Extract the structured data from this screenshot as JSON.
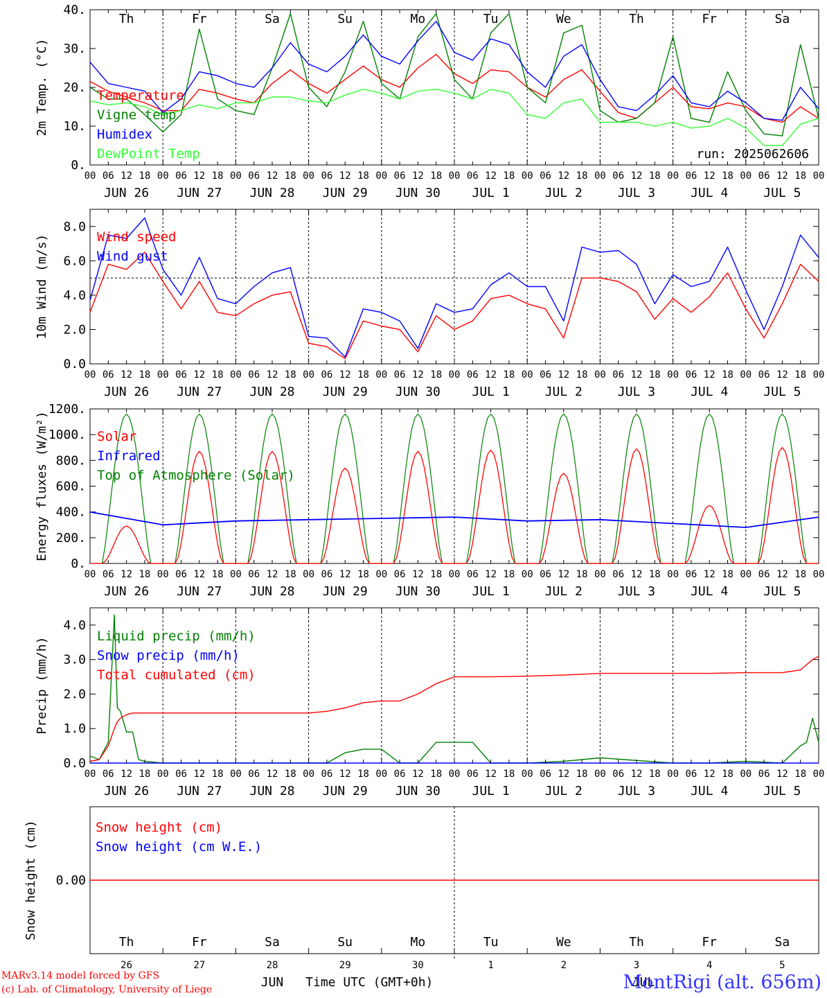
{
  "chart_data": [
    {
      "type": "line",
      "ylabel": "2m Temp. (°C)",
      "ylim": [
        0,
        40
      ],
      "yticks": [
        "0.",
        "10.",
        "20.",
        "30.",
        "40."
      ],
      "run": "run: 2025062606",
      "x_hours_range": [
        0,
        240
      ],
      "x": [
        0,
        6,
        12,
        18,
        24,
        30,
        36,
        42,
        48,
        54,
        60,
        66,
        72,
        78,
        84,
        90,
        96,
        102,
        108,
        114,
        120,
        126,
        132,
        138,
        144,
        150,
        156,
        162,
        168,
        174,
        180,
        186,
        192,
        198,
        204,
        210,
        216,
        222,
        228,
        234,
        240
      ],
      "series": [
        {
          "name": "Temperature",
          "color": "#ff0000",
          "values": [
            21.5,
            19,
            17.5,
            16,
            14,
            14,
            19.5,
            18.5,
            17,
            16,
            21,
            24.5,
            21,
            18.5,
            22,
            25.5,
            22,
            20,
            25,
            28.5,
            23.5,
            21,
            24.5,
            24,
            20,
            17.5,
            22,
            24.5,
            19,
            13.5,
            12,
            16,
            20,
            15,
            14.5,
            16,
            15,
            12,
            11,
            15,
            12
          ]
        },
        {
          "name": "Vigne temp",
          "color": "#008000",
          "values": [
            20,
            17,
            17,
            13,
            8.5,
            13,
            35,
            17,
            14,
            13,
            25,
            39,
            20,
            15,
            24,
            37,
            21,
            17,
            33,
            39,
            22,
            17,
            34,
            39,
            20,
            16,
            34,
            36,
            14,
            11,
            12,
            16,
            33,
            12,
            11,
            24,
            14,
            8,
            7.5,
            31,
            12
          ]
        },
        {
          "name": "Humidex",
          "color": "#0000ff",
          "values": [
            26.5,
            21,
            20,
            19,
            13.5,
            17,
            24,
            23,
            21,
            20,
            25,
            31.5,
            26,
            24,
            28,
            33.5,
            28,
            26,
            32,
            37,
            29,
            27,
            32.5,
            31,
            24,
            20,
            28,
            31,
            22,
            15,
            14,
            18,
            23,
            16,
            15,
            19,
            16,
            12,
            11.5,
            20,
            14.5
          ]
        },
        {
          "name": "DewPoint Temp",
          "color": "#33ff33",
          "values": [
            16.5,
            15.5,
            16,
            15,
            13,
            14,
            15.5,
            14.5,
            16,
            16,
            17.5,
            17.5,
            16.5,
            16,
            18,
            19.5,
            18.5,
            17,
            19,
            19.5,
            18.5,
            17,
            19.5,
            18.5,
            13,
            12,
            16,
            17,
            11,
            11,
            11,
            10,
            11,
            9.5,
            10,
            12,
            9.5,
            5,
            5,
            10.5,
            12
          ]
        }
      ],
      "day_labels": [
        {
          "text": "Th",
          "color": "#000000"
        },
        {
          "text": "Fr",
          "color": "#000000"
        },
        {
          "text": "Sa",
          "color": "#ff0000"
        },
        {
          "text": "Su",
          "color": "#ff0000"
        },
        {
          "text": "Mo",
          "color": "#000000"
        },
        {
          "text": "Tu",
          "color": "#000000"
        },
        {
          "text": "We",
          "color": "#000000"
        },
        {
          "text": "Th",
          "color": "#000000"
        },
        {
          "text": "Fr",
          "color": "#000000"
        },
        {
          "text": "Sa",
          "color": "#ff0000"
        }
      ]
    },
    {
      "type": "line",
      "ylabel": "10m Wind (m/s)",
      "ylim": [
        0,
        9
      ],
      "yticks_values": [
        0,
        2,
        4,
        6,
        8
      ],
      "yticks": [
        "0.0",
        "2.0",
        "4.0",
        "6.0",
        "8.0"
      ],
      "reference_line": 5,
      "x": [
        0,
        6,
        12,
        18,
        24,
        30,
        36,
        42,
        48,
        54,
        60,
        66,
        72,
        78,
        84,
        90,
        96,
        102,
        108,
        114,
        120,
        126,
        132,
        138,
        144,
        150,
        156,
        162,
        168,
        174,
        180,
        186,
        192,
        198,
        204,
        210,
        216,
        222,
        228,
        234,
        240
      ],
      "series": [
        {
          "name": "Wind speed",
          "color": "#ff0000",
          "values": [
            3,
            5.8,
            5.5,
            6.5,
            4.8,
            3.2,
            4.8,
            3,
            2.8,
            3.5,
            4,
            4.2,
            1.2,
            1,
            0.3,
            2.5,
            2.2,
            2,
            0.7,
            2.8,
            2,
            2.5,
            3.8,
            4,
            3.5,
            3.2,
            1.5,
            5,
            5,
            4.8,
            4.2,
            2.6,
            3.8,
            3,
            3.9,
            5.3,
            3.2,
            1.5,
            3.5,
            5.8,
            4.8
          ]
        },
        {
          "name": "Wind gust",
          "color": "#0000ff",
          "values": [
            3.7,
            7.5,
            7.3,
            8.5,
            5.5,
            4,
            6.2,
            3.8,
            3.5,
            4.5,
            5.3,
            5.6,
            1.6,
            1.5,
            0.4,
            3.2,
            3,
            2.5,
            0.9,
            3.5,
            3,
            3.2,
            4.6,
            5.3,
            4.5,
            4.5,
            2.5,
            6.8,
            6.5,
            6.6,
            5.8,
            3.5,
            5.2,
            4.5,
            4.8,
            6.8,
            4.3,
            2,
            4.5,
            7.5,
            6.2
          ]
        }
      ]
    },
    {
      "type": "line",
      "ylabel": "Energy fluxes (W/m²)",
      "ylim": [
        0,
        1200
      ],
      "yticks_values": [
        0,
        200,
        400,
        600,
        800,
        1000,
        1200
      ],
      "yticks": [
        "0.",
        "200.",
        "400.",
        "600.",
        "800.",
        "1000.",
        "1200."
      ],
      "toa_peak": 1160,
      "toa_day_hours": [
        4,
        20
      ],
      "solar_day_peaks": [
        290,
        870,
        870,
        740,
        870,
        880,
        700,
        890,
        450,
        900
      ],
      "infrared": {
        "x": [
          0,
          24,
          48,
          72,
          96,
          120,
          144,
          168,
          192,
          216,
          240
        ],
        "values": [
          400,
          300,
          330,
          340,
          350,
          360,
          330,
          340,
          310,
          280,
          360
        ]
      },
      "series": [
        {
          "name": "Solar",
          "color": "#ff0000"
        },
        {
          "name": "Infrared",
          "color": "#0000ff"
        },
        {
          "name": "Top of Atmosphere (Solar)",
          "color": "#008000"
        }
      ]
    },
    {
      "type": "line",
      "ylabel": "Precip (mm/h)",
      "ylim": [
        0,
        4.5
      ],
      "yticks_values": [
        0,
        1,
        2,
        3,
        4
      ],
      "yticks": [
        "0.0",
        "1.0",
        "2.0",
        "3.0",
        "4.0"
      ],
      "x": [
        0,
        3,
        6,
        8,
        9,
        10,
        12,
        14,
        16,
        18,
        24,
        72,
        78,
        84,
        90,
        96,
        102,
        108,
        114,
        120,
        126,
        132,
        144,
        156,
        168,
        192,
        204,
        216,
        228,
        234,
        236,
        238,
        240
      ],
      "series": [
        {
          "name": "Liquid precip (mm/h)",
          "color": "#008000",
          "values": [
            0.2,
            0.1,
            0.6,
            4.3,
            1.6,
            1.5,
            0.9,
            0.9,
            0.1,
            0.05,
            0,
            0,
            0,
            0.3,
            0.4,
            0.4,
            0,
            0,
            0.6,
            0.6,
            0.6,
            0,
            0,
            0.05,
            0.15,
            0,
            0,
            0.05,
            0,
            0.5,
            0.6,
            1.3,
            0.6
          ]
        },
        {
          "name": "Snow precip (mm/h)",
          "color": "#0000ff",
          "values": [
            0,
            0,
            0,
            0,
            0,
            0,
            0,
            0,
            0,
            0,
            0,
            0,
            0,
            0,
            0,
            0,
            0,
            0,
            0,
            0,
            0,
            0,
            0,
            0,
            0,
            0,
            0,
            0,
            0,
            0,
            0,
            0,
            0
          ]
        },
        {
          "name": "Total cumulated (cm)",
          "color": "#ff0000",
          "values": [
            0.05,
            0.1,
            0.5,
            1.0,
            1.2,
            1.3,
            1.4,
            1.45,
            1.45,
            1.45,
            1.45,
            1.45,
            1.5,
            1.6,
            1.75,
            1.8,
            1.8,
            2.0,
            2.3,
            2.5,
            2.5,
            2.5,
            2.52,
            2.55,
            2.6,
            2.6,
            2.6,
            2.62,
            2.62,
            2.7,
            2.85,
            3.0,
            3.1
          ]
        }
      ]
    },
    {
      "type": "line",
      "ylabel": "Snow height (cm)",
      "yticks": [
        "0.00"
      ],
      "series": [
        {
          "name": "Snow height (cm)",
          "color": "#ff0000",
          "values": [
            0,
            0
          ]
        },
        {
          "name": "Snow height (cm W.E.)",
          "color": "#0000ff",
          "values": [
            0,
            0
          ]
        }
      ],
      "day_labels": [
        {
          "text": "Th",
          "color": "#000000"
        },
        {
          "text": "Fr",
          "color": "#000000"
        },
        {
          "text": "Sa",
          "color": "#ff0000"
        },
        {
          "text": "Su",
          "color": "#ff0000"
        },
        {
          "text": "Mo",
          "color": "#000000"
        },
        {
          "text": "Tu",
          "color": "#000000"
        },
        {
          "text": "We",
          "color": "#000000"
        },
        {
          "text": "Th",
          "color": "#000000"
        },
        {
          "text": "Fr",
          "color": "#000000"
        },
        {
          "text": "Sa",
          "color": "#ff0000"
        }
      ],
      "day_numbers": [
        "26",
        "27",
        "28",
        "29",
        "30",
        "1",
        "2",
        "3",
        "4",
        "5"
      ],
      "month_labels": [
        "JUN",
        "JUL"
      ],
      "xlabel": "Time UTC (GMT+0h)"
    }
  ],
  "x_axis": {
    "hour_ticks": [
      "00",
      "06",
      "12",
      "18"
    ],
    "final_tick": "00",
    "dates": [
      "JUN 26",
      "JUN 27",
      "JUN 28",
      "JUN 29",
      "JUN 30",
      "JUL  1",
      "JUL  2",
      "JUL  3",
      "JUL  4",
      "JUL  5"
    ]
  },
  "footer": {
    "credit_line1": "MARv3.14 model forced by GFS",
    "credit_line2": "(c) Lab. of Climatology, University of Liege",
    "station": "MontRigi (alt. 656m)"
  }
}
